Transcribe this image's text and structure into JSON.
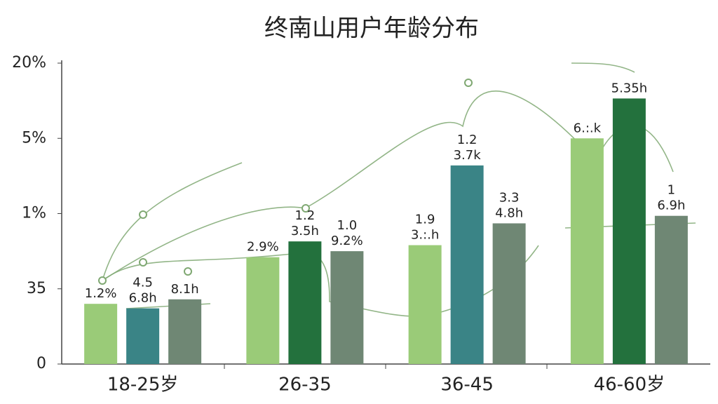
{
  "chart_data": {
    "type": "bar",
    "title": "终南山用户年龄分布",
    "categories": [
      "18-25岁",
      "26-35",
      "36-45",
      "46-60岁"
    ],
    "ylim": [
      0,
      4
    ],
    "yticks": [
      0,
      {
        "value": 1,
        "label": "35"
      },
      {
        "value": 2,
        "label": "1%"
      },
      {
        "value": 3,
        "label": "5%"
      },
      {
        "value": 4,
        "label": "20%"
      }
    ],
    "series": [
      {
        "color": "#9acb78",
        "values": [
          0.8,
          1.42,
          1.58,
          3.0
        ],
        "labels": [
          [
            "1.2%"
          ],
          [
            "2.9%"
          ],
          [
            "1.9",
            "3.:.h"
          ],
          [
            "6.:.k"
          ]
        ]
      },
      {
        "color": "#23713d",
        "colors": [
          "#3a8486",
          "#23713d",
          "#3a8486",
          "#23713d"
        ],
        "values": [
          0.74,
          1.63,
          2.64,
          3.53
        ],
        "labels": [
          [
            "4.5",
            "6.8h"
          ],
          [
            "1.2",
            "3.5h"
          ],
          [
            "1.2",
            "3.7k"
          ],
          [
            "5.35h"
          ]
        ]
      },
      {
        "color": "#6f8774",
        "values": [
          0.86,
          1.5,
          1.87,
          1.97
        ],
        "labels": [
          [
            "8.1h"
          ],
          [
            "1.0",
            "9.2%"
          ],
          [
            "3.3",
            "4.8h"
          ],
          [
            "1",
            "6.9h"
          ]
        ]
      }
    ]
  }
}
